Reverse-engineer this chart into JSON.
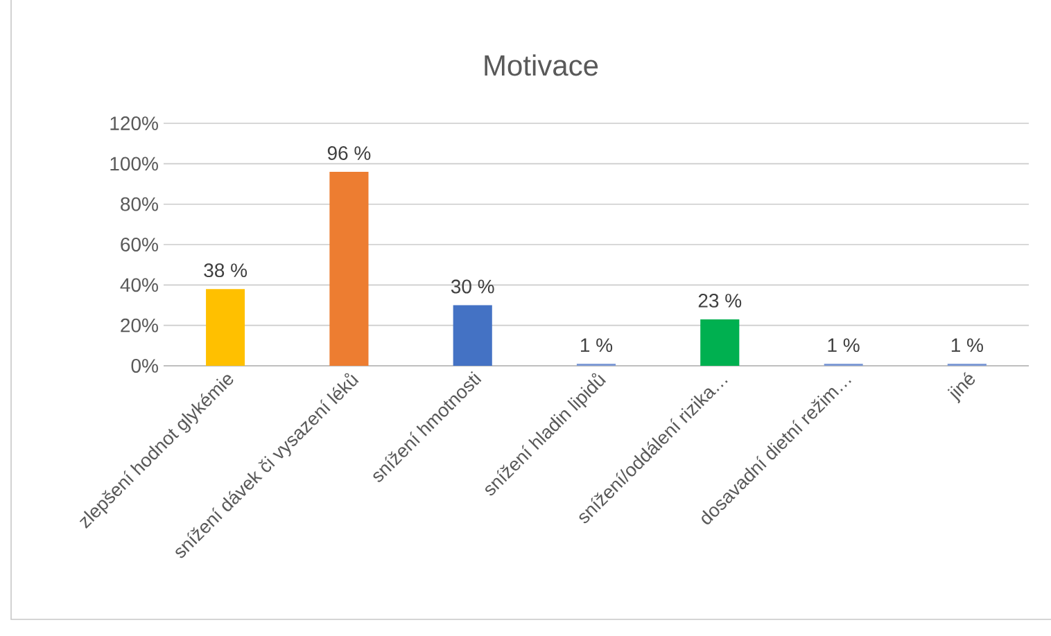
{
  "chart_data": {
    "type": "bar",
    "title": "Motivace",
    "categories": [
      "zlepšení hodnot glykémie",
      "snížení dávek či vysazení léků",
      "snížení hmotnosti",
      "snížení hladin lipidů",
      "snížení/oddálení rizika…",
      "dosavadní dietní režim…",
      "jiné"
    ],
    "values": [
      38,
      96,
      30,
      1,
      23,
      1,
      1
    ],
    "colors": [
      "#ffc000",
      "#ed7d31",
      "#4472c4",
      "#7f9bd6",
      "#00b050",
      "#7f9bd6",
      "#7f9bd6"
    ],
    "value_labels": [
      "38 %",
      "96 %",
      "30 %",
      "1 %",
      "23 %",
      "1 %",
      "1 %"
    ],
    "ylim": [
      0,
      120
    ],
    "yticks": [
      {
        "value": 0,
        "label": "0%"
      },
      {
        "value": 20,
        "label": "20%"
      },
      {
        "value": 40,
        "label": "40%"
      },
      {
        "value": 60,
        "label": "60%"
      },
      {
        "value": 80,
        "label": "80%"
      },
      {
        "value": 100,
        "label": "100%"
      },
      {
        "value": 120,
        "label": "120%"
      }
    ],
    "grid": "y"
  }
}
